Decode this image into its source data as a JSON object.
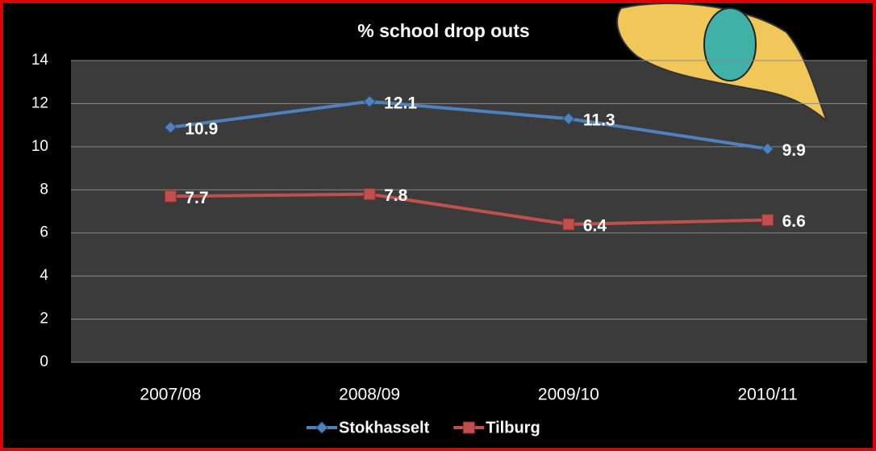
{
  "chart_data": {
    "type": "line",
    "title": "% school drop outs",
    "categories": [
      "2007/08",
      "2008/09",
      "2009/10",
      "2010/11"
    ],
    "series": [
      {
        "name": "Stokhasselt",
        "color": "#4f81bd",
        "marker": "diamond",
        "values": [
          10.9,
          12.1,
          11.3,
          9.9
        ]
      },
      {
        "name": "Tilburg",
        "color": "#c0504d",
        "marker": "square",
        "values": [
          7.7,
          7.8,
          6.4,
          6.6
        ]
      }
    ],
    "ylim": [
      0,
      14
    ],
    "yticks": [
      0,
      2,
      4,
      6,
      8,
      10,
      12,
      14
    ],
    "grid": true,
    "legend": "bottom"
  }
}
